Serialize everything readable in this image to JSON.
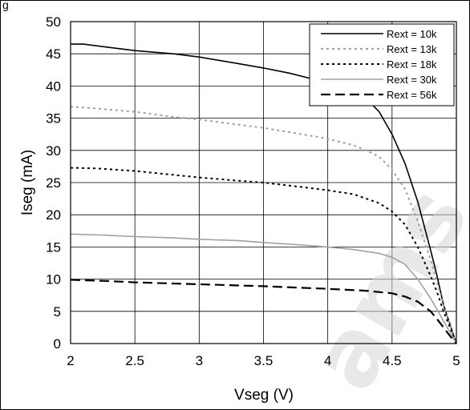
{
  "figure_label": "g",
  "watermark": "ams",
  "chart_data": {
    "type": "line",
    "title": "",
    "xlabel": "Vseg (V)",
    "ylabel": "Iseg (mA)",
    "xlim": [
      2,
      5
    ],
    "ylim": [
      0,
      50
    ],
    "xticks": [
      2,
      2.5,
      3,
      3.5,
      4,
      4.5,
      5
    ],
    "yticks": [
      0,
      5,
      10,
      15,
      20,
      25,
      30,
      35,
      40,
      45,
      50
    ],
    "grid": true,
    "legend_position": "top-right",
    "series": [
      {
        "name": "Rext = 10k",
        "color": "#000000",
        "dash": "solid",
        "x": [
          2.0,
          2.1,
          2.3,
          2.5,
          2.8,
          3.0,
          3.3,
          3.5,
          3.7,
          3.9,
          4.1,
          4.3,
          4.4,
          4.5,
          4.6,
          4.7,
          4.8,
          4.85,
          4.9,
          4.95,
          5.0
        ],
        "y": [
          46.5,
          46.5,
          46.0,
          45.5,
          45.0,
          44.5,
          43.5,
          42.8,
          42.0,
          41.0,
          39.8,
          38.0,
          36.0,
          32.5,
          28.0,
          22.0,
          14.5,
          10.5,
          6.0,
          3.0,
          0.0
        ]
      },
      {
        "name": "Rext = 13k",
        "color": "#a0a0a0",
        "dash": "dot",
        "x": [
          2.0,
          2.2,
          2.5,
          2.8,
          3.0,
          3.3,
          3.5,
          3.8,
          4.0,
          4.2,
          4.3,
          4.4,
          4.5,
          4.6,
          4.7,
          4.8,
          4.85,
          4.9,
          4.95,
          5.0
        ],
        "y": [
          36.8,
          36.5,
          36.0,
          35.2,
          34.8,
          34.0,
          33.5,
          32.5,
          31.8,
          30.8,
          30.0,
          29.0,
          27.0,
          24.0,
          19.0,
          13.0,
          9.5,
          6.0,
          3.0,
          0.0
        ]
      },
      {
        "name": "Rext = 18k",
        "color": "#000000",
        "dash": "dot",
        "x": [
          2.0,
          2.2,
          2.5,
          2.8,
          3.0,
          3.3,
          3.5,
          3.8,
          4.0,
          4.2,
          4.4,
          4.5,
          4.6,
          4.7,
          4.8,
          4.85,
          4.9,
          4.95,
          5.0
        ],
        "y": [
          27.3,
          27.2,
          26.8,
          26.2,
          25.8,
          25.3,
          25.0,
          24.3,
          23.8,
          23.2,
          21.8,
          20.5,
          18.5,
          15.0,
          10.5,
          8.0,
          5.0,
          2.5,
          0.0
        ]
      },
      {
        "name": "Rext = 30k",
        "color": "#a0a0a0",
        "dash": "solid",
        "x": [
          2.0,
          2.3,
          2.5,
          2.8,
          3.0,
          3.3,
          3.5,
          3.8,
          4.0,
          4.2,
          4.4,
          4.5,
          4.6,
          4.7,
          4.8,
          4.85,
          4.9,
          4.95,
          5.0
        ],
        "y": [
          17.0,
          16.8,
          16.6,
          16.4,
          16.2,
          16.0,
          15.7,
          15.3,
          15.0,
          14.6,
          14.0,
          13.4,
          12.3,
          10.0,
          7.0,
          5.3,
          3.5,
          1.8,
          0.0
        ]
      },
      {
        "name": "Rext = 56k",
        "color": "#000000",
        "dash": "dash",
        "x": [
          2.0,
          2.3,
          2.5,
          3.0,
          3.5,
          4.0,
          4.3,
          4.5,
          4.6,
          4.7,
          4.8,
          4.85,
          4.9,
          4.95,
          5.0
        ],
        "y": [
          9.9,
          9.7,
          9.5,
          9.2,
          8.9,
          8.5,
          8.2,
          7.8,
          7.3,
          6.5,
          5.0,
          3.8,
          2.5,
          1.2,
          0.0
        ]
      }
    ]
  }
}
